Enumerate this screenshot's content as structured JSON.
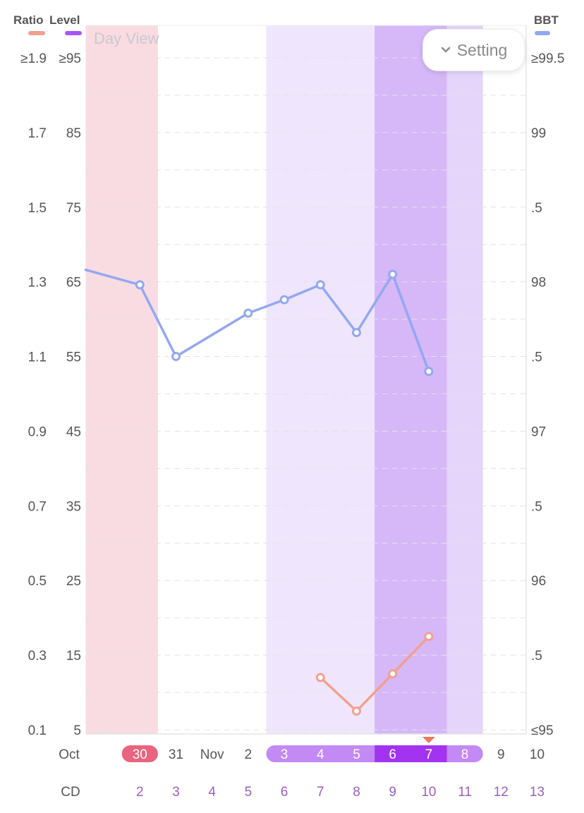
{
  "header": {
    "left_legend_ratio": "Ratio",
    "left_legend_level": "Level",
    "right_legend": "BBT",
    "view_label": "Day View",
    "setting_label": "Setting"
  },
  "colors": {
    "ratio": "#f2a08f",
    "level": "#a855f7",
    "bbt": "#93a8f2",
    "period": "#f8dce2",
    "fertile": "#efe6fd",
    "peak": "#d6b7f8",
    "post_peak": "#e5d5fa",
    "period_pill": "#e9647e",
    "fertile_pill": "#c389f5",
    "peak_pill": "#a233f0",
    "cd_text": "#9b5fc0"
  },
  "chart_data": {
    "type": "line",
    "categories": [
      "Oct",
      "30",
      "31",
      "Nov",
      "2",
      "3",
      "4",
      "5",
      "6",
      "7",
      "8",
      "9",
      "10"
    ],
    "cycle_days": [
      2,
      3,
      4,
      5,
      6,
      7,
      8,
      9,
      10,
      11,
      12,
      13
    ],
    "cycle_day_label": "CD",
    "axes": {
      "ratio": {
        "ticks": [
          "≥1.9",
          "1.7",
          "1.5",
          "1.3",
          "1.1",
          "0.9",
          "0.7",
          "0.5",
          "0.3",
          "0.1"
        ],
        "range": [
          0.1,
          1.9
        ]
      },
      "level": {
        "ticks": [
          "≥95",
          "85",
          "75",
          "65",
          "55",
          "45",
          "35",
          "25",
          "15",
          "5"
        ],
        "range": [
          5,
          95
        ]
      },
      "bbt": {
        "ticks": [
          "≥99.5",
          "99",
          ".5",
          "98",
          ".5",
          "97",
          ".5",
          "96",
          ".5",
          "≤95"
        ],
        "range": [
          95,
          99.5
        ]
      }
    },
    "series": [
      {
        "name": "BBT",
        "axis": "bbt",
        "points": [
          {
            "x": "Oct",
            "y": 98.08
          },
          {
            "x": "30",
            "y": 97.98
          },
          {
            "x": "31",
            "y": 97.5
          },
          {
            "x": "2",
            "y": 97.79
          },
          {
            "x": "3",
            "y": 97.88
          },
          {
            "x": "4",
            "y": 97.98
          },
          {
            "x": "5",
            "y": 97.66
          },
          {
            "x": "6",
            "y": 98.05
          },
          {
            "x": "7",
            "y": 97.4
          }
        ]
      },
      {
        "name": "Ratio",
        "axis": "ratio",
        "points": [
          {
            "x": "4",
            "y": 0.24
          },
          {
            "x": "5",
            "y": 0.15
          },
          {
            "x": "6",
            "y": 0.25
          },
          {
            "x": "7",
            "y": 0.35
          }
        ]
      }
    ],
    "bands": [
      {
        "type": "period",
        "from": "Oct",
        "to": "30"
      },
      {
        "type": "fertile",
        "from": "3",
        "to": "5"
      },
      {
        "type": "peak",
        "from": "6",
        "to": "7"
      },
      {
        "type": "post_peak",
        "from": "8",
        "to": "8"
      }
    ],
    "today": "7",
    "grid": true,
    "legend_position": "top"
  }
}
